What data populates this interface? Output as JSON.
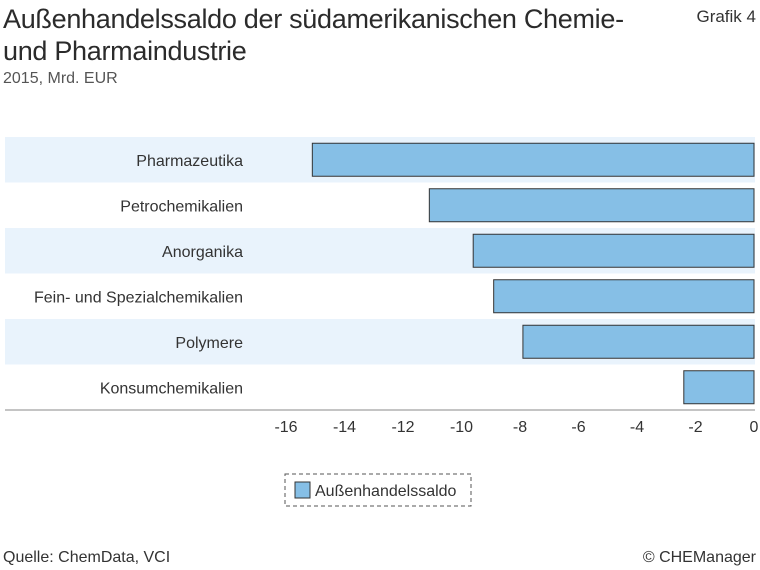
{
  "header": {
    "title": "Außenhandelssaldo der südamerikanischen Chemie- und Pharmaindustrie",
    "grafik_label": "Grafik 4",
    "subtitle": "2015, Mrd. EUR"
  },
  "footer": {
    "source": "Quelle: ChemData, VCI",
    "copyright": "© CHEManager"
  },
  "colors": {
    "bar_fill": "#86bfe6",
    "bar_stroke": "#333333",
    "band_fill": "#e9f3fc",
    "axis": "#888888"
  },
  "chart_data": {
    "type": "bar",
    "orientation": "horizontal",
    "categories": [
      "Pharmazeutika",
      "Petrochemikalien",
      "Anorganika",
      "Fein- und Spezialchemikalien",
      "Polymere",
      "Konsumchemikalien"
    ],
    "series": [
      {
        "name": "Außenhandelssaldo",
        "values": [
          -15.1,
          -11.1,
          -9.6,
          -8.9,
          -7.9,
          -2.4
        ]
      }
    ],
    "xlim": [
      -16,
      0
    ],
    "xticks": [
      "-16",
      "-14",
      "-12",
      "-10",
      "-8",
      "-6",
      "-4",
      "-2",
      "0"
    ],
    "legend_position": "bottom-center",
    "grid": false
  }
}
